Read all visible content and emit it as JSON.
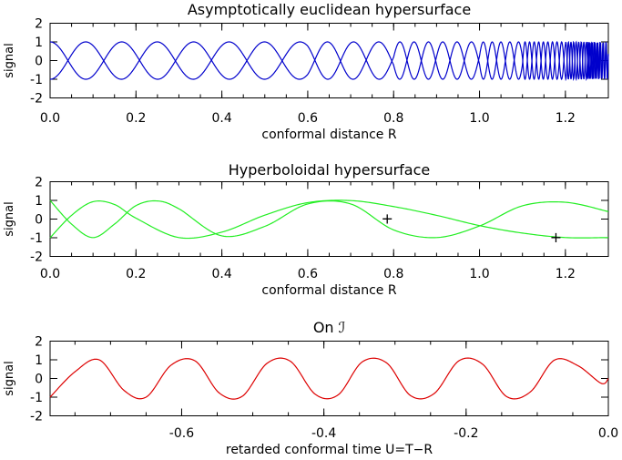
{
  "chart_data": [
    {
      "type": "line",
      "title": "Asymptotically euclidean hypersurface",
      "xlabel": "conformal distance R",
      "ylabel": "signal",
      "xlim": [
        0.0,
        1.3
      ],
      "ylim": [
        -2,
        2
      ],
      "xticks": [
        "0.0",
        "0.2",
        "0.4",
        "0.6",
        "0.8",
        "1.0",
        "1.2"
      ],
      "yticks": [
        "2",
        "1",
        "0",
        "-1",
        "-2"
      ],
      "color": "#0000cc",
      "description_of_curves": "two oscillating curves with unit amplitude, frequency increasing toward R=1.3",
      "series": [
        {
          "x": [
            0.0,
            0.2,
            0.4,
            0.6,
            0.8,
            1.0,
            1.1,
            1.2,
            1.25,
            1.3
          ],
          "phase_rad": [
            -1.571,
            6.0,
            13.5,
            21.1,
            31.6,
            50.5,
            65.8,
            95.3,
            121.5,
            170.0
          ],
          "values": [
            -1.0,
            0.96,
            0.8,
            0.85,
            0.09,
            0.28,
            0.12,
            0.89,
            0.76,
            0.0
          ]
        },
        {
          "x": [
            0.0,
            0.2,
            0.4,
            0.6,
            0.8,
            1.0,
            1.1,
            1.2,
            1.25,
            1.3
          ],
          "phase_rad": [
            1.571,
            9.1,
            16.6,
            24.3,
            34.8,
            53.6,
            68.9,
            98.4,
            124.6,
            170.0
          ],
          "values": [
            1.0,
            0.34,
            -0.8,
            -0.73,
            0.32,
            -0.16,
            -0.41,
            -0.88,
            -0.98,
            0.0
          ]
        }
      ]
    },
    {
      "type": "line",
      "title": "Hyperboloidal hypersurface",
      "xlabel": "conformal distance R",
      "ylabel": "signal",
      "xlim": [
        0.0,
        1.3
      ],
      "ylim": [
        -2,
        2
      ],
      "xticks": [
        "0.0",
        "0.2",
        "0.4",
        "0.6",
        "0.8",
        "1.0",
        "1.2"
      ],
      "yticks": [
        "2",
        "1",
        "0",
        "-1",
        "-2"
      ],
      "color": "#22ee22",
      "series": [
        {
          "x": [
            0.0,
            0.05,
            0.1,
            0.15,
            0.2,
            0.3,
            0.4,
            0.5,
            0.6,
            0.7,
            0.8,
            0.9,
            1.0,
            1.1,
            1.2,
            1.3
          ],
          "values": [
            -1.0,
            0.2,
            0.93,
            0.78,
            0.05,
            -0.99,
            -0.7,
            0.21,
            0.88,
            0.99,
            0.67,
            0.2,
            -0.35,
            -0.75,
            -0.99,
            -0.99
          ]
        },
        {
          "x": [
            0.0,
            0.05,
            0.1,
            0.15,
            0.2,
            0.25,
            0.3,
            0.4,
            0.5,
            0.6,
            0.7,
            0.8,
            0.9,
            1.0,
            1.1,
            1.2,
            1.3
          ],
          "values": [
            1.0,
            -0.27,
            -0.99,
            -0.27,
            0.72,
            0.97,
            0.55,
            -0.9,
            -0.39,
            0.81,
            0.81,
            -0.58,
            -0.99,
            -0.37,
            0.71,
            0.9,
            0.4
          ]
        }
      ],
      "markers": [
        {
          "symbol": "+",
          "x": 0.785,
          "y": 0.0
        },
        {
          "symbol": "+",
          "x": 1.178,
          "y": -1.0
        }
      ]
    },
    {
      "type": "line",
      "title": "On ℐ",
      "xlabel": "retarded conformal time U=T−R",
      "ylabel": "signal",
      "xlim": [
        -0.785,
        0.0
      ],
      "ylim": [
        -2,
        2
      ],
      "xticks": [
        "-0.6",
        "-0.4",
        "-0.2",
        "0.0"
      ],
      "yticks": [
        "2",
        "1",
        "0",
        "-1",
        "-2"
      ],
      "color": "#dd0000",
      "series": [
        {
          "x": [
            -0.785,
            -0.75,
            -0.716,
            -0.681,
            -0.65,
            -0.615,
            -0.581,
            -0.547,
            -0.515,
            -0.48,
            -0.447,
            -0.412,
            -0.38,
            -0.346,
            -0.312,
            -0.278,
            -0.245,
            -0.21,
            -0.177,
            -0.143,
            -0.11,
            -0.076,
            -0.043,
            -0.01,
            0.0
          ],
          "values": [
            -1.0,
            0.36,
            1.0,
            -0.64,
            -1.0,
            0.71,
            0.94,
            -0.78,
            -0.96,
            0.81,
            0.92,
            -0.85,
            -0.88,
            0.89,
            0.84,
            -0.92,
            -0.81,
            0.95,
            0.77,
            -0.97,
            -0.73,
            0.98,
            0.69,
            -0.26,
            0.0
          ]
        }
      ]
    }
  ]
}
